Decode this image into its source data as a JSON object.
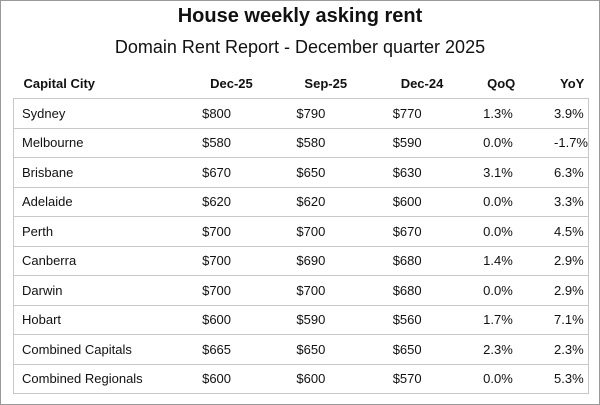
{
  "header": {
    "title": "House weekly asking rent",
    "subtitle": "Domain Rent Report - December quarter 2025"
  },
  "table": {
    "columns": [
      "Capital City",
      "Dec-25",
      "Sep-25",
      "Dec-24",
      "QoQ",
      "YoY"
    ],
    "rows": [
      [
        "Sydney",
        "$800",
        "$790",
        "$770",
        "1.3%",
        "3.9%"
      ],
      [
        "Melbourne",
        "$580",
        "$580",
        "$590",
        "0.0%",
        "-1.7%"
      ],
      [
        "Brisbane",
        "$670",
        "$650",
        "$630",
        "3.1%",
        "6.3%"
      ],
      [
        "Adelaide",
        "$620",
        "$620",
        "$600",
        "0.0%",
        "3.3%"
      ],
      [
        "Perth",
        "$700",
        "$700",
        "$670",
        "0.0%",
        "4.5%"
      ],
      [
        "Canberra",
        "$700",
        "$690",
        "$680",
        "1.4%",
        "2.9%"
      ],
      [
        "Darwin",
        "$700",
        "$700",
        "$680",
        "0.0%",
        "2.9%"
      ],
      [
        "Hobart",
        "$600",
        "$590",
        "$560",
        "1.7%",
        "7.1%"
      ],
      [
        "Combined Capitals",
        "$665",
        "$650",
        "$650",
        "2.3%",
        "2.3%"
      ],
      [
        "Combined Regionals",
        "$600",
        "$600",
        "$570",
        "0.0%",
        "5.3%"
      ]
    ]
  }
}
